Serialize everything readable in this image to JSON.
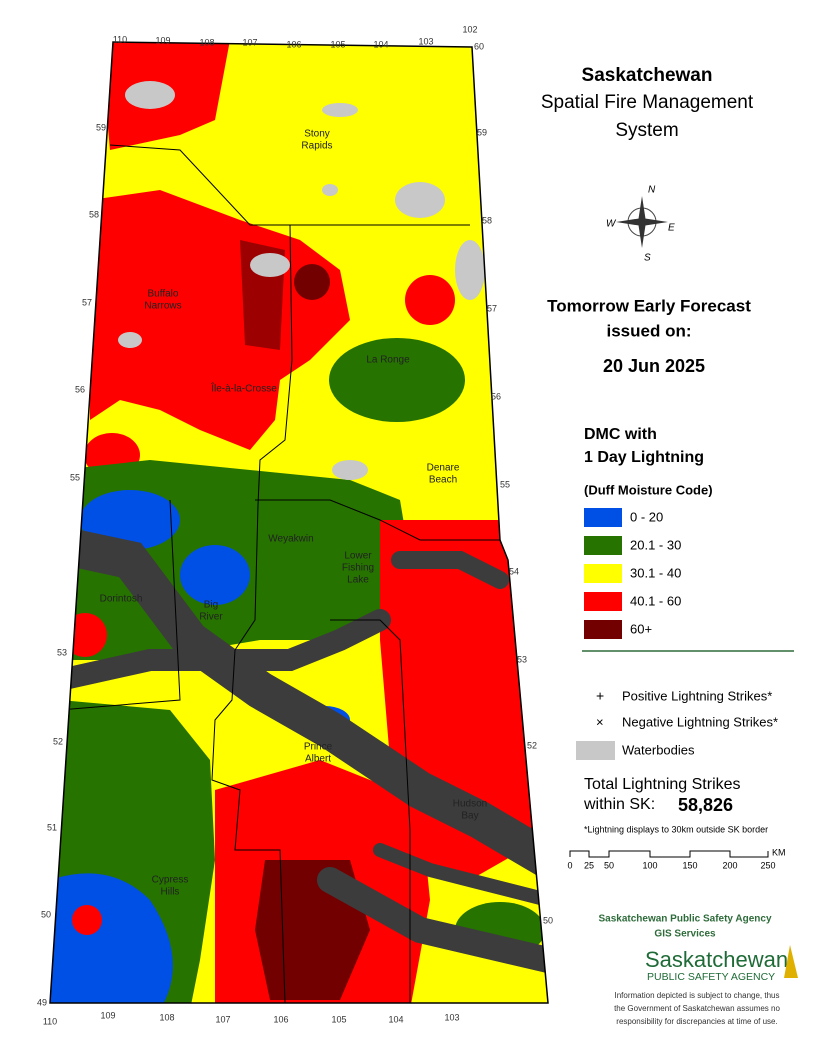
{
  "title": [
    "Saskatchewan",
    "Spatial Fire Management",
    "System"
  ],
  "compass": [
    "N",
    "E",
    "S",
    "W"
  ],
  "forecast": {
    "heading": [
      "Tomorrow Early Forecast",
      "issued on:"
    ],
    "date": "20 Jun 2025"
  },
  "legend": {
    "title": [
      "DMC with",
      "1 Day Lightning"
    ],
    "subtitle": "(Duff Moisture Code)",
    "classes": [
      {
        "label": "0 - 20",
        "color": "#0050e6"
      },
      {
        "label": "20.1 - 30",
        "color": "#267300"
      },
      {
        "label": "30.1 - 40",
        "color": "#ffff00"
      },
      {
        "label": "40.1 - 60",
        "color": "#ff0000"
      },
      {
        "label": "60+",
        "color": "#730000"
      }
    ]
  },
  "symbols": [
    "Positive Lightning Strikes*",
    "Negative Lightning Strikes*",
    "Waterbodies"
  ],
  "total": {
    "label": [
      "Total Lightning Strikes",
      "within SK:"
    ],
    "value": "58,826",
    "note": "*Lightning displays to 30km outside SK border"
  },
  "scale": {
    "ticks": [
      "0",
      "25",
      "50",
      "100",
      "150",
      "200",
      "250"
    ],
    "unit": "KM"
  },
  "agency": {
    "name": "Saskatchewan Public Safety Agency",
    "unit": "GIS  Services",
    "logo": [
      "Saskatchewan",
      "PUBLIC SAFETY AGENCY"
    ],
    "disclaimer": [
      "Information depicted is subject to change, thus",
      "the Government of Saskatchewan assumes no",
      "responsibility for discrepancies at time of use."
    ]
  },
  "map": {
    "places": [
      [
        "Stony",
        "Rapids"
      ],
      [
        "Buffalo",
        "Narrows"
      ],
      [
        "Île-à-la-Crosse"
      ],
      [
        "La Ronge"
      ],
      [
        "Denare",
        "Beach"
      ],
      [
        "Weyakwin"
      ],
      [
        "Lower",
        "Fishing",
        "Lake"
      ],
      [
        "Dorintosh"
      ],
      [
        "Big",
        "River"
      ],
      [
        "Prince",
        "Albert"
      ],
      [
        "Hudson",
        "Bay"
      ],
      [
        "Cypress",
        "Hills"
      ]
    ],
    "longitudes_top": [
      "110",
      "109",
      "108",
      "107",
      "106",
      "105",
      "104",
      "103",
      "102"
    ],
    "longitudes_bottom": [
      "110",
      "109",
      "108",
      "107",
      "106",
      "105",
      "104",
      "103"
    ],
    "latitudes_left": [
      "59",
      "58",
      "57",
      "56",
      "55",
      "53",
      "52",
      "51",
      "50",
      "49"
    ],
    "latitudes_right": [
      "60",
      "59",
      "58",
      "57",
      "56",
      "55",
      "54",
      "53",
      "52",
      "50"
    ]
  }
}
